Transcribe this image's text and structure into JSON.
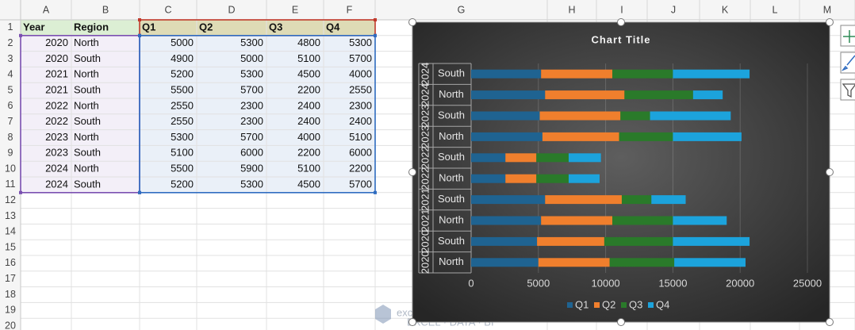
{
  "columns": [
    "A",
    "B",
    "C",
    "D",
    "E",
    "F",
    "G",
    "H",
    "I",
    "J",
    "K",
    "L",
    "M"
  ],
  "row_numbers": [
    1,
    2,
    3,
    4,
    5,
    6,
    7,
    8,
    9,
    10,
    11,
    12,
    13,
    14,
    15,
    16,
    17,
    18,
    19,
    20
  ],
  "table": {
    "header": [
      "Year",
      "Region",
      "Q1",
      "Q2",
      "Q3",
      "Q4"
    ],
    "rows": [
      [
        2020,
        "North",
        5000,
        5300,
        4800,
        5300
      ],
      [
        2020,
        "South",
        4900,
        5000,
        5100,
        5700
      ],
      [
        2021,
        "North",
        5200,
        5300,
        4500,
        4000
      ],
      [
        2021,
        "South",
        5500,
        5700,
        2200,
        2550
      ],
      [
        2022,
        "North",
        2550,
        2300,
        2400,
        2300
      ],
      [
        2022,
        "South",
        2550,
        2300,
        2400,
        2400
      ],
      [
        2023,
        "North",
        5300,
        5700,
        4000,
        5100
      ],
      [
        2023,
        "South",
        5100,
        6000,
        2200,
        6000
      ],
      [
        2024,
        "North",
        5500,
        5900,
        5100,
        2200
      ],
      [
        2024,
        "South",
        5200,
        5300,
        4500,
        5700
      ]
    ]
  },
  "chart_data": {
    "type": "stacked_barh",
    "title": "Chart Title",
    "categories": [
      {
        "year": "2020",
        "region": "North"
      },
      {
        "year": "2020",
        "region": "South"
      },
      {
        "year": "2021",
        "region": "North"
      },
      {
        "year": "2021",
        "region": "South"
      },
      {
        "year": "2022",
        "region": "North"
      },
      {
        "year": "2022",
        "region": "South"
      },
      {
        "year": "2023",
        "region": "North"
      },
      {
        "year": "2023",
        "region": "South"
      },
      {
        "year": "2024",
        "region": "North"
      },
      {
        "year": "2024",
        "region": "South"
      }
    ],
    "series": [
      {
        "name": "Q1",
        "color": "#1f6391",
        "values": [
          5000,
          4900,
          5200,
          5500,
          2550,
          2550,
          5300,
          5100,
          5500,
          5200
        ]
      },
      {
        "name": "Q2",
        "color": "#f07f2d",
        "values": [
          5300,
          5000,
          5300,
          5700,
          2300,
          2300,
          5700,
          6000,
          5900,
          5300
        ]
      },
      {
        "name": "Q3",
        "color": "#2a7a2a",
        "values": [
          4800,
          5100,
          4500,
          2200,
          2400,
          2400,
          4000,
          2200,
          5100,
          4500
        ]
      },
      {
        "name": "Q4",
        "color": "#1ca3dc",
        "values": [
          5300,
          5700,
          4000,
          2550,
          2300,
          2400,
          5100,
          6000,
          2200,
          5700
        ]
      }
    ],
    "xlim": [
      0,
      25000
    ],
    "xticks": [
      0,
      5000,
      10000,
      15000,
      20000,
      25000
    ],
    "grid": true,
    "legend": "bottom"
  },
  "watermark": {
    "name": "exceldemy",
    "tagline": "EXCEL · DATA · BI"
  }
}
